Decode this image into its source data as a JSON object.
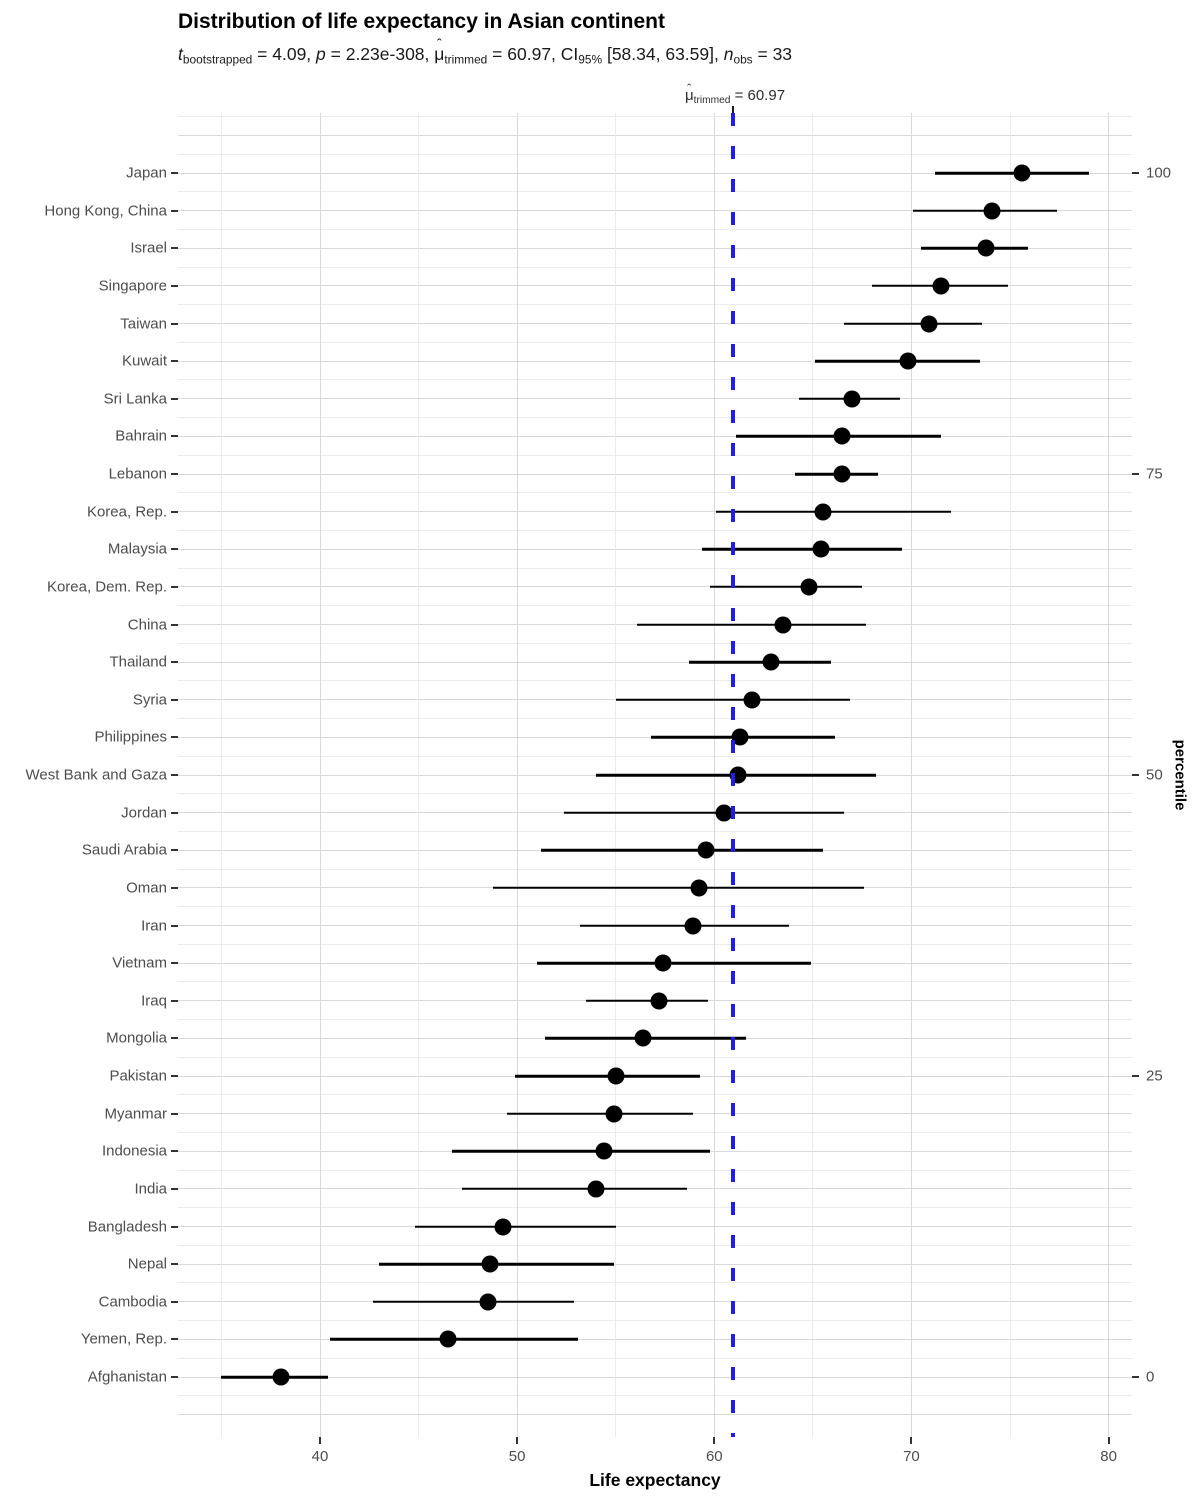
{
  "title": "Distribution of life expectancy in Asian continent",
  "subtitle_segments": [
    {
      "t": "t",
      "i": 1
    },
    {
      "t": "bootstrapped",
      "s": 1
    },
    {
      "t": " = 4.09, "
    },
    {
      "t": "p",
      "i": 1
    },
    {
      "t": " = 2.23e-308, "
    },
    {
      "t": "μ",
      "hat": 1
    },
    {
      "t": "trimmed",
      "s": 1
    },
    {
      "t": " = 60.97, CI"
    },
    {
      "t": "95%",
      "s": 1
    },
    {
      "t": " [58.34, 63.59], "
    },
    {
      "t": "n",
      "i": 1
    },
    {
      "t": "obs",
      "s": 1
    },
    {
      "t": " = 33"
    }
  ],
  "centrality_label_segments": [
    {
      "t": "μ",
      "hat": 1
    },
    {
      "t": "trimmed",
      "s": 1
    },
    {
      "t": " = 60.97"
    }
  ],
  "chart_data": {
    "type": "scatter",
    "subtype": "dot-plot-with-ci",
    "title": "Distribution of life expectancy in Asian continent",
    "xlabel": "Life expectancy",
    "y2label": "percentile",
    "xlim": [
      32.8,
      81.2
    ],
    "x_major_ticks": [
      40,
      50,
      60,
      70,
      80
    ],
    "x_minor_gridlines": [
      35,
      45,
      55,
      65,
      75
    ],
    "grid": "on",
    "centrality_value": 60.97,
    "y2_ticks": [
      {
        "label": "100",
        "row": 0
      },
      {
        "label": "75",
        "row": 8
      },
      {
        "label": "50",
        "row": 16
      },
      {
        "label": "25",
        "row": 24
      },
      {
        "label": "0",
        "row": 32
      }
    ],
    "series": [
      {
        "country": "Japan",
        "mean": 75.6,
        "ci_low": 71.2,
        "ci_high": 79.0
      },
      {
        "country": "Hong Kong, China",
        "mean": 74.1,
        "ci_low": 70.1,
        "ci_high": 77.4
      },
      {
        "country": "Israel",
        "mean": 73.8,
        "ci_low": 70.5,
        "ci_high": 75.9
      },
      {
        "country": "Singapore",
        "mean": 71.5,
        "ci_low": 68.0,
        "ci_high": 74.9
      },
      {
        "country": "Taiwan",
        "mean": 70.9,
        "ci_low": 66.6,
        "ci_high": 73.6
      },
      {
        "country": "Kuwait",
        "mean": 69.8,
        "ci_low": 65.1,
        "ci_high": 73.5
      },
      {
        "country": "Sri Lanka",
        "mean": 67.0,
        "ci_low": 64.3,
        "ci_high": 69.4
      },
      {
        "country": "Bahrain",
        "mean": 66.5,
        "ci_low": 61.1,
        "ci_high": 71.5
      },
      {
        "country": "Lebanon",
        "mean": 66.5,
        "ci_low": 64.1,
        "ci_high": 68.3
      },
      {
        "country": "Korea, Rep.",
        "mean": 65.5,
        "ci_low": 60.1,
        "ci_high": 72.0
      },
      {
        "country": "Malaysia",
        "mean": 65.4,
        "ci_low": 59.4,
        "ci_high": 69.5
      },
      {
        "country": "Korea, Dem. Rep.",
        "mean": 64.8,
        "ci_low": 59.8,
        "ci_high": 67.5
      },
      {
        "country": "China",
        "mean": 63.5,
        "ci_low": 56.1,
        "ci_high": 67.7
      },
      {
        "country": "Thailand",
        "mean": 62.9,
        "ci_low": 58.7,
        "ci_high": 65.9
      },
      {
        "country": "Syria",
        "mean": 61.9,
        "ci_low": 55.0,
        "ci_high": 66.9
      },
      {
        "country": "Philippines",
        "mean": 61.3,
        "ci_low": 56.8,
        "ci_high": 66.1
      },
      {
        "country": "West Bank and Gaza",
        "mean": 61.2,
        "ci_low": 54.0,
        "ci_high": 68.2
      },
      {
        "country": "Jordan",
        "mean": 60.5,
        "ci_low": 52.4,
        "ci_high": 66.6
      },
      {
        "country": "Saudi Arabia",
        "mean": 59.6,
        "ci_low": 51.2,
        "ci_high": 65.5
      },
      {
        "country": "Oman",
        "mean": 59.2,
        "ci_low": 48.8,
        "ci_high": 67.6
      },
      {
        "country": "Iran",
        "mean": 58.9,
        "ci_low": 53.2,
        "ci_high": 63.8
      },
      {
        "country": "Vietnam",
        "mean": 57.4,
        "ci_low": 51.0,
        "ci_high": 64.9
      },
      {
        "country": "Iraq",
        "mean": 57.2,
        "ci_low": 53.5,
        "ci_high": 59.7
      },
      {
        "country": "Mongolia",
        "mean": 56.4,
        "ci_low": 51.4,
        "ci_high": 61.6
      },
      {
        "country": "Pakistan",
        "mean": 55.0,
        "ci_low": 49.9,
        "ci_high": 59.3
      },
      {
        "country": "Myanmar",
        "mean": 54.9,
        "ci_low": 49.5,
        "ci_high": 58.9
      },
      {
        "country": "Indonesia",
        "mean": 54.4,
        "ci_low": 46.7,
        "ci_high": 59.8
      },
      {
        "country": "India",
        "mean": 54.0,
        "ci_low": 47.2,
        "ci_high": 58.6
      },
      {
        "country": "Bangladesh",
        "mean": 49.3,
        "ci_low": 44.8,
        "ci_high": 55.0
      },
      {
        "country": "Nepal",
        "mean": 48.6,
        "ci_low": 43.0,
        "ci_high": 54.9
      },
      {
        "country": "Cambodia",
        "mean": 48.5,
        "ci_low": 42.7,
        "ci_high": 52.9
      },
      {
        "country": "Yemen, Rep.",
        "mean": 46.5,
        "ci_low": 40.5,
        "ci_high": 53.1
      },
      {
        "country": "Afghanistan",
        "mean": 38.0,
        "ci_low": 35.0,
        "ci_high": 40.4
      }
    ]
  },
  "colors": {
    "centrality_line": "#1E1EE6",
    "point": "#000000",
    "ci_line": "#000000",
    "grid_major": "#d9d9d9",
    "grid_minor": "#ebebeb",
    "axis_text": "#4d4d4d",
    "tick": "#333333"
  }
}
